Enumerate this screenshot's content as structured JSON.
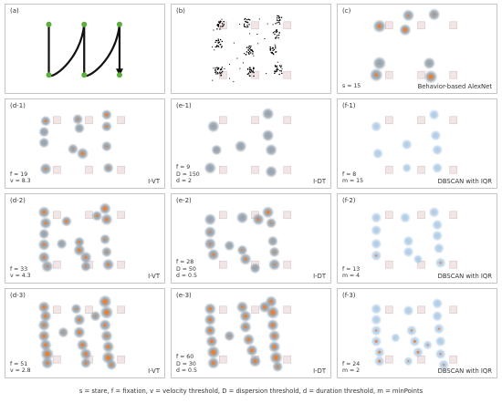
{
  "caption": "s = stare, f = fixation, v = velocity threshold, D = dispersion threshold, d = duration threshold, m = minPoints",
  "colors": {
    "target_box": "#f1e5e5",
    "target_border": "#d9c6c6",
    "node_green": "#5cae3f",
    "path": "#111111",
    "gray_blob": "#8d9ba7",
    "orange_core": "#ef7d2c",
    "blue_blob": "#a9c7e4"
  },
  "panels": [
    {
      "id": "a",
      "label": "(a)",
      "params": [],
      "method": "",
      "kind": "path"
    },
    {
      "id": "b",
      "label": "(b)",
      "params": [],
      "method": "",
      "kind": "scatter"
    },
    {
      "id": "c",
      "label": "(c)",
      "params": [
        "s = 15"
      ],
      "method": "Behavior-based AlexNet",
      "kind": "blobs",
      "style": "gray",
      "blobs": [
        [
          0.26,
          0.24,
          1.0,
          0.5
        ],
        [
          0.44,
          0.12,
          0.9,
          0.3
        ],
        [
          0.42,
          0.28,
          0.9,
          0.6
        ],
        [
          0.6,
          0.11,
          0.9,
          0.3
        ],
        [
          0.26,
          0.65,
          1.0,
          0.0
        ],
        [
          0.24,
          0.78,
          1.0,
          0.4
        ],
        [
          0.57,
          0.65,
          0.9,
          0.0
        ],
        [
          0.58,
          0.8,
          1.0,
          0.6
        ]
      ]
    },
    {
      "id": "d-1",
      "label": "(d-1)",
      "params": [
        "f = 19",
        "v = 8.3"
      ],
      "method": "I-VT",
      "kind": "blobs",
      "style": "gray",
      "blobs": [
        [
          0.25,
          0.24,
          0.8,
          0.4
        ],
        [
          0.24,
          0.36,
          0.8,
          0.0
        ],
        [
          0.24,
          0.48,
          0.8,
          0.0
        ],
        [
          0.45,
          0.22,
          0.8,
          0.3
        ],
        [
          0.46,
          0.32,
          0.8,
          0.0
        ],
        [
          0.42,
          0.55,
          0.8,
          0.3
        ],
        [
          0.48,
          0.6,
          0.9,
          0.5
        ],
        [
          0.63,
          0.17,
          0.8,
          0.5
        ],
        [
          0.63,
          0.3,
          0.8,
          0.4
        ],
        [
          0.63,
          0.52,
          0.8,
          0.3
        ],
        [
          0.64,
          0.76,
          0.8,
          0.3
        ],
        [
          0.25,
          0.77,
          0.9,
          0.3
        ]
      ]
    },
    {
      "id": "e-1",
      "label": "(e-1)",
      "params": [
        "f = 9",
        "D = 150",
        "d = 2"
      ],
      "method": "I-DT",
      "kind": "blobs",
      "style": "gray",
      "blobs": [
        [
          0.26,
          0.3,
          0.9,
          0.0
        ],
        [
          0.24,
          0.76,
          0.9,
          0.0
        ],
        [
          0.43,
          0.52,
          0.9,
          0.0
        ],
        [
          0.6,
          0.16,
          0.9,
          0.0
        ],
        [
          0.6,
          0.4,
          0.9,
          0.0
        ],
        [
          0.62,
          0.56,
          0.9,
          0.0
        ],
        [
          0.62,
          0.8,
          0.9,
          0.0
        ],
        [
          0.28,
          0.56,
          0.8,
          0.0
        ]
      ]
    },
    {
      "id": "f-1",
      "label": "(f-1)",
      "params": [
        "f = 8",
        "m = 15"
      ],
      "method": "DBSCAN with IQR",
      "kind": "blobs",
      "style": "blue",
      "blobs": [
        [
          0.24,
          0.3,
          0.8,
          0.0
        ],
        [
          0.25,
          0.6,
          0.8,
          0.0
        ],
        [
          0.43,
          0.5,
          0.8,
          0.0
        ],
        [
          0.6,
          0.17,
          0.8,
          0.0
        ],
        [
          0.61,
          0.4,
          0.8,
          0.0
        ],
        [
          0.62,
          0.56,
          0.8,
          0.0
        ],
        [
          0.62,
          0.76,
          0.8,
          0.0
        ],
        [
          0.43,
          0.76,
          0.7,
          0.0
        ]
      ]
    },
    {
      "id": "d-2",
      "label": "(d-2)",
      "params": [
        "f = 33",
        "v = 4.3"
      ],
      "method": "I-VT",
      "kind": "blobs",
      "style": "gray",
      "blobs": [
        [
          0.24,
          0.2,
          0.9,
          0.5
        ],
        [
          0.25,
          0.32,
          0.9,
          0.4
        ],
        [
          0.24,
          0.44,
          0.8,
          0.0
        ],
        [
          0.24,
          0.56,
          0.9,
          0.4
        ],
        [
          0.24,
          0.7,
          0.9,
          0.4
        ],
        [
          0.26,
          0.8,
          0.9,
          0.3
        ],
        [
          0.38,
          0.3,
          0.8,
          0.5
        ],
        [
          0.35,
          0.55,
          0.8,
          0.0
        ],
        [
          0.46,
          0.53,
          0.8,
          0.4
        ],
        [
          0.46,
          0.62,
          0.9,
          0.5
        ],
        [
          0.5,
          0.7,
          0.9,
          0.4
        ],
        [
          0.5,
          0.8,
          0.8,
          0.3
        ],
        [
          0.62,
          0.16,
          0.9,
          0.6
        ],
        [
          0.63,
          0.28,
          0.9,
          0.5
        ],
        [
          0.62,
          0.5,
          0.8,
          0.3
        ],
        [
          0.63,
          0.64,
          0.8,
          0.3
        ],
        [
          0.64,
          0.78,
          0.9,
          0.4
        ],
        [
          0.57,
          0.24,
          0.8,
          0.4
        ]
      ]
    },
    {
      "id": "e-2",
      "label": "(e-2)",
      "params": [
        "f = 28",
        "D = 50",
        "d = 0.5"
      ],
      "method": "I-DT",
      "kind": "blobs",
      "style": "gray",
      "blobs": [
        [
          0.24,
          0.28,
          0.9,
          0.0
        ],
        [
          0.24,
          0.42,
          0.9,
          0.3
        ],
        [
          0.24,
          0.55,
          0.9,
          0.3
        ],
        [
          0.26,
          0.67,
          0.9,
          0.4
        ],
        [
          0.36,
          0.57,
          0.8,
          0.0
        ],
        [
          0.44,
          0.62,
          0.8,
          0.3
        ],
        [
          0.46,
          0.72,
          0.9,
          0.4
        ],
        [
          0.52,
          0.82,
          0.8,
          0.0
        ],
        [
          0.44,
          0.26,
          0.9,
          0.0
        ],
        [
          0.54,
          0.28,
          0.9,
          0.4
        ],
        [
          0.6,
          0.2,
          0.9,
          0.5
        ],
        [
          0.62,
          0.32,
          0.8,
          0.3
        ],
        [
          0.63,
          0.52,
          0.8,
          0.0
        ],
        [
          0.64,
          0.64,
          0.8,
          0.3
        ],
        [
          0.64,
          0.78,
          0.9,
          0.3
        ]
      ]
    },
    {
      "id": "f-2",
      "label": "(f-2)",
      "params": [
        "f = 13",
        "m = 4"
      ],
      "method": "DBSCAN with IQR",
      "kind": "blobs",
      "style": "blue",
      "blobs": [
        [
          0.24,
          0.26,
          0.8,
          0.0
        ],
        [
          0.24,
          0.4,
          0.8,
          0.0
        ],
        [
          0.24,
          0.55,
          0.8,
          0.0
        ],
        [
          0.24,
          0.68,
          0.8,
          0.3
        ],
        [
          0.42,
          0.26,
          0.8,
          0.0
        ],
        [
          0.44,
          0.52,
          0.8,
          0.0
        ],
        [
          0.44,
          0.64,
          0.8,
          0.0
        ],
        [
          0.6,
          0.2,
          0.8,
          0.0
        ],
        [
          0.62,
          0.34,
          0.8,
          0.0
        ],
        [
          0.62,
          0.46,
          0.8,
          0.0
        ],
        [
          0.63,
          0.6,
          0.8,
          0.0
        ],
        [
          0.64,
          0.76,
          0.8,
          0.3
        ],
        [
          0.5,
          0.72,
          0.7,
          0.0
        ]
      ]
    },
    {
      "id": "d-3",
      "label": "(d-3)",
      "params": [
        "f = 51",
        "v = 2.8"
      ],
      "method": "I-VT",
      "kind": "blobs",
      "style": "gray",
      "blobs": [
        [
          0.24,
          0.2,
          0.9,
          0.5
        ],
        [
          0.25,
          0.3,
          0.9,
          0.5
        ],
        [
          0.24,
          0.4,
          0.9,
          0.4
        ],
        [
          0.24,
          0.52,
          0.9,
          0.5
        ],
        [
          0.25,
          0.62,
          0.9,
          0.5
        ],
        [
          0.26,
          0.72,
          1.0,
          0.6
        ],
        [
          0.26,
          0.82,
          0.9,
          0.4
        ],
        [
          0.36,
          0.48,
          0.8,
          0.3
        ],
        [
          0.44,
          0.22,
          0.8,
          0.3
        ],
        [
          0.46,
          0.34,
          0.9,
          0.4
        ],
        [
          0.46,
          0.48,
          0.9,
          0.5
        ],
        [
          0.48,
          0.62,
          0.9,
          0.5
        ],
        [
          0.5,
          0.72,
          0.9,
          0.5
        ],
        [
          0.5,
          0.82,
          0.8,
          0.4
        ],
        [
          0.62,
          0.14,
          1.0,
          0.6
        ],
        [
          0.63,
          0.26,
          1.0,
          0.6
        ],
        [
          0.62,
          0.4,
          0.9,
          0.4
        ],
        [
          0.63,
          0.52,
          0.9,
          0.4
        ],
        [
          0.64,
          0.64,
          0.9,
          0.5
        ],
        [
          0.64,
          0.76,
          1.0,
          0.6
        ],
        [
          0.66,
          0.84,
          0.8,
          0.4
        ],
        [
          0.56,
          0.3,
          0.8,
          0.3
        ]
      ]
    },
    {
      "id": "e-3",
      "label": "(e-3)",
      "params": [
        "f = 60",
        "D = 30",
        "d = 0.5"
      ],
      "method": "I-DT",
      "kind": "blobs",
      "style": "gray",
      "blobs": [
        [
          0.24,
          0.22,
          0.9,
          0.5
        ],
        [
          0.24,
          0.34,
          0.9,
          0.5
        ],
        [
          0.24,
          0.46,
          0.9,
          0.5
        ],
        [
          0.25,
          0.58,
          0.9,
          0.5
        ],
        [
          0.26,
          0.7,
          1.0,
          0.6
        ],
        [
          0.26,
          0.82,
          0.9,
          0.5
        ],
        [
          0.36,
          0.52,
          0.8,
          0.3
        ],
        [
          0.44,
          0.2,
          0.9,
          0.4
        ],
        [
          0.46,
          0.3,
          0.9,
          0.5
        ],
        [
          0.46,
          0.42,
          0.9,
          0.4
        ],
        [
          0.48,
          0.56,
          0.9,
          0.5
        ],
        [
          0.5,
          0.68,
          0.9,
          0.5
        ],
        [
          0.52,
          0.8,
          0.9,
          0.5
        ],
        [
          0.58,
          0.2,
          0.9,
          0.5
        ],
        [
          0.62,
          0.14,
          0.9,
          0.5
        ],
        [
          0.63,
          0.26,
          1.0,
          0.6
        ],
        [
          0.63,
          0.4,
          0.9,
          0.5
        ],
        [
          0.64,
          0.52,
          0.9,
          0.5
        ],
        [
          0.64,
          0.64,
          0.9,
          0.5
        ],
        [
          0.65,
          0.76,
          1.0,
          0.6
        ],
        [
          0.66,
          0.86,
          0.8,
          0.4
        ]
      ]
    },
    {
      "id": "f-3",
      "label": "(f-3)",
      "params": [
        "f = 24",
        "m = 2"
      ],
      "method": "DBSCAN with IQR",
      "kind": "blobs",
      "style": "blue",
      "blobs": [
        [
          0.24,
          0.22,
          0.8,
          0.0
        ],
        [
          0.24,
          0.34,
          0.8,
          0.0
        ],
        [
          0.24,
          0.46,
          0.8,
          0.3
        ],
        [
          0.24,
          0.58,
          0.8,
          0.4
        ],
        [
          0.26,
          0.7,
          0.8,
          0.4
        ],
        [
          0.26,
          0.8,
          0.8,
          0.4
        ],
        [
          0.36,
          0.54,
          0.7,
          0.0
        ],
        [
          0.44,
          0.24,
          0.8,
          0.0
        ],
        [
          0.46,
          0.46,
          0.8,
          0.3
        ],
        [
          0.48,
          0.58,
          0.8,
          0.4
        ],
        [
          0.5,
          0.7,
          0.8,
          0.4
        ],
        [
          0.44,
          0.8,
          0.7,
          0.3
        ],
        [
          0.62,
          0.16,
          0.8,
          0.0
        ],
        [
          0.62,
          0.3,
          0.8,
          0.0
        ],
        [
          0.63,
          0.44,
          0.8,
          0.3
        ],
        [
          0.64,
          0.58,
          0.8,
          0.0
        ],
        [
          0.64,
          0.72,
          0.8,
          0.3
        ],
        [
          0.66,
          0.84,
          0.8,
          0.3
        ],
        [
          0.56,
          0.62,
          0.7,
          0.3
        ]
      ]
    }
  ],
  "nodes": [
    [
      0.27,
      0.22
    ],
    [
      0.27,
      0.78
    ],
    [
      0.49,
      0.22
    ],
    [
      0.49,
      0.78
    ],
    [
      0.71,
      0.22
    ],
    [
      0.71,
      0.78
    ]
  ],
  "targets": [
    [
      0.32,
      0.23
    ],
    [
      0.32,
      0.78
    ],
    [
      0.52,
      0.23
    ],
    [
      0.52,
      0.78
    ],
    [
      0.72,
      0.23
    ],
    [
      0.72,
      0.78
    ]
  ]
}
